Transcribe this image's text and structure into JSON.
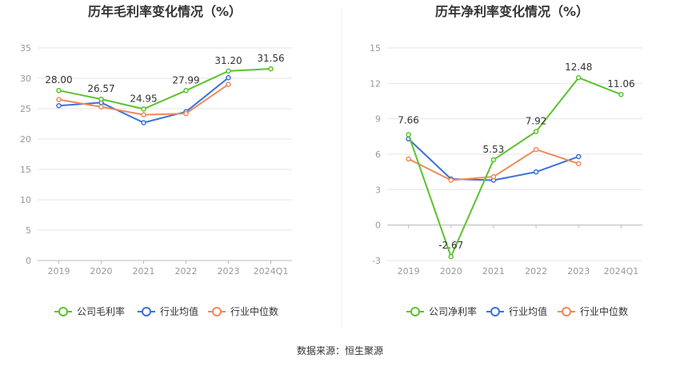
{
  "chart_data": [
    {
      "type": "line",
      "title": "历年毛利率变化情况（%）",
      "categories": [
        "2019",
        "2020",
        "2021",
        "2022",
        "2023",
        "2024Q1"
      ],
      "ylim": [
        0,
        35
      ],
      "yticks": [
        0,
        5,
        10,
        15,
        20,
        25,
        30,
        35
      ],
      "grid": true,
      "legend_position": "bottom",
      "series": [
        {
          "name": "公司毛利率",
          "color": "#5cc22d",
          "values": [
            28.0,
            26.57,
            24.95,
            27.99,
            31.2,
            31.56
          ],
          "labels": [
            "28.00",
            "26.57",
            "24.95",
            "27.99",
            "31.20",
            "31.56"
          ]
        },
        {
          "name": "行业均值",
          "color": "#3b72db",
          "values": [
            25.5,
            26.0,
            22.7,
            24.5,
            30.1,
            null
          ]
        },
        {
          "name": "行业中位数",
          "color": "#ef8a5a",
          "values": [
            26.5,
            25.3,
            24.0,
            24.2,
            29.0,
            null
          ]
        }
      ]
    },
    {
      "type": "line",
      "title": "历年净利率变化情况（%）",
      "categories": [
        "2019",
        "2020",
        "2021",
        "2022",
        "2023",
        "2024Q1"
      ],
      "ylim": [
        -3,
        15
      ],
      "yticks": [
        -3,
        0,
        3,
        6,
        9,
        12,
        15
      ],
      "grid": true,
      "legend_position": "bottom",
      "series": [
        {
          "name": "公司净利率",
          "color": "#5cc22d",
          "values": [
            7.66,
            -2.67,
            5.53,
            7.92,
            12.48,
            11.06
          ],
          "labels": [
            "7.66",
            "-2.67",
            "5.53",
            "7.92",
            "12.48",
            "11.06"
          ]
        },
        {
          "name": "行业均值",
          "color": "#3b72db",
          "values": [
            7.3,
            3.9,
            3.8,
            4.5,
            5.8,
            null
          ]
        },
        {
          "name": "行业中位数",
          "color": "#ef8a5a",
          "values": [
            5.6,
            3.8,
            4.1,
            6.4,
            5.2,
            null
          ]
        }
      ]
    }
  ],
  "source_text": "数据来源：恒生聚源"
}
